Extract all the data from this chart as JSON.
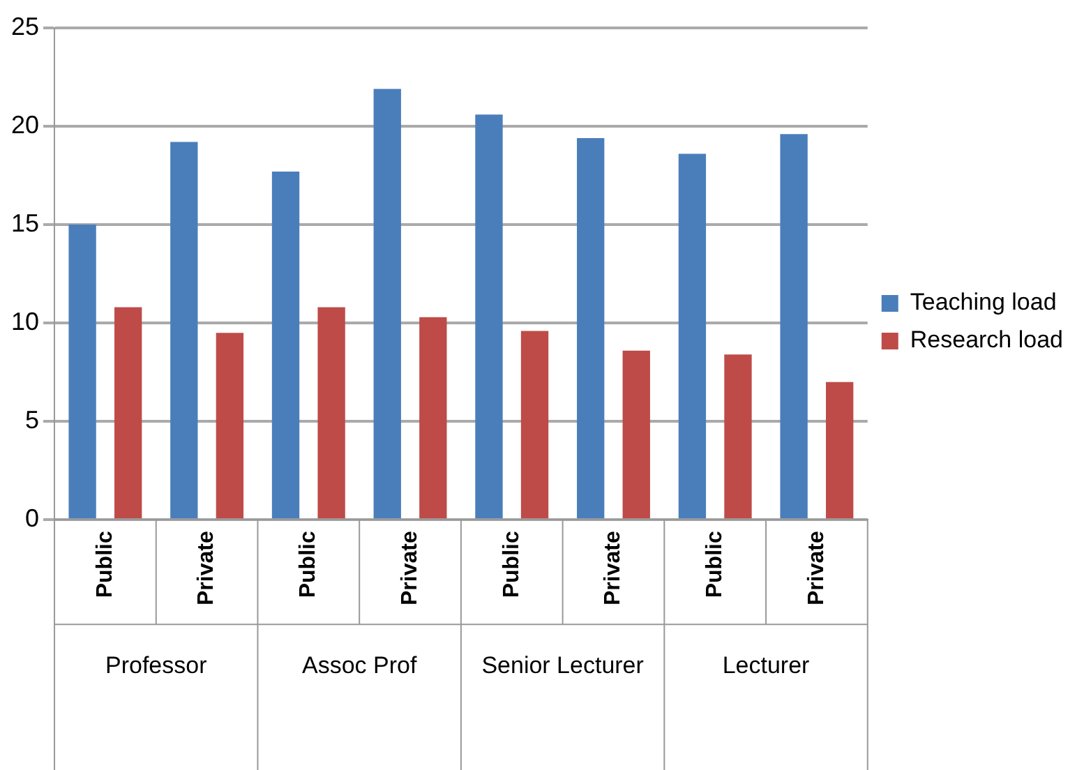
{
  "chart_data": {
    "type": "bar",
    "categories": [
      "Public",
      "Private",
      "Public",
      "Private",
      "Public",
      "Private",
      "Public",
      "Private"
    ],
    "series": [
      {
        "name": "Teaching load",
        "color": "#4a7ebb",
        "values": [
          15,
          19.2,
          17.7,
          21.9,
          20.6,
          19.4,
          18.6,
          19.6
        ]
      },
      {
        "name": "Research load",
        "color": "#be4b48",
        "values": [
          10.8,
          9.5,
          10.8,
          10.3,
          9.6,
          8.6,
          8.4,
          7.0
        ]
      }
    ],
    "annotations": [
      "Professor",
      "Assoc Prof",
      "Senior Lecturer",
      "Lecturer"
    ],
    "ylim": [
      0,
      25
    ],
    "yticks": [
      0,
      5,
      10,
      15,
      20,
      25
    ],
    "grid": "y",
    "legend": "right"
  }
}
